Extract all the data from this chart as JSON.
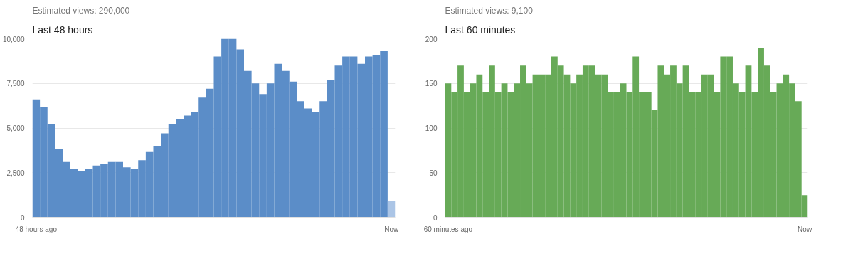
{
  "chart_data": [
    {
      "type": "bar",
      "title": "Last 48 hours",
      "subtitle": "Estimated views: 290,000",
      "categories": [
        "48 hours ago",
        null,
        null,
        null,
        null,
        null,
        null,
        null,
        null,
        null,
        null,
        null,
        null,
        null,
        null,
        null,
        null,
        null,
        null,
        null,
        null,
        null,
        null,
        null,
        null,
        null,
        null,
        null,
        null,
        null,
        null,
        null,
        null,
        null,
        null,
        null,
        null,
        null,
        null,
        null,
        null,
        null,
        null,
        null,
        null,
        null,
        null,
        "Now"
      ],
      "values": [
        6600,
        6200,
        5200,
        3800,
        3100,
        2700,
        2600,
        2700,
        2900,
        3000,
        3100,
        3100,
        2800,
        2700,
        3200,
        3700,
        4000,
        4700,
        5200,
        5500,
        5700,
        5900,
        6700,
        7200,
        9000,
        10000,
        10000,
        9400,
        8200,
        7500,
        6900,
        7500,
        8600,
        8200,
        7600,
        6500,
        6100,
        5900,
        6500,
        7700,
        8500,
        9000,
        9000,
        8600,
        9000,
        9100,
        9300,
        900
      ],
      "colors": [
        "#5b8dc8",
        "#5b8dc8",
        "#5b8dc8",
        "#5b8dc8",
        "#5b8dc8",
        "#5b8dc8",
        "#5b8dc8",
        "#5b8dc8",
        "#5b8dc8",
        "#5b8dc8",
        "#5b8dc8",
        "#5b8dc8",
        "#5b8dc8",
        "#5b8dc8",
        "#5b8dc8",
        "#5b8dc8",
        "#5b8dc8",
        "#5b8dc8",
        "#5b8dc8",
        "#5b8dc8",
        "#5b8dc8",
        "#5b8dc8",
        "#5b8dc8",
        "#5b8dc8",
        "#5b8dc8",
        "#5b8dc8",
        "#5b8dc8",
        "#5b8dc8",
        "#5b8dc8",
        "#5b8dc8",
        "#5b8dc8",
        "#5b8dc8",
        "#5b8dc8",
        "#5b8dc8",
        "#5b8dc8",
        "#5b8dc8",
        "#5b8dc8",
        "#5b8dc8",
        "#5b8dc8",
        "#5b8dc8",
        "#5b8dc8",
        "#5b8dc8",
        "#5b8dc8",
        "#5b8dc8",
        "#5b8dc8",
        "#5b8dc8",
        "#5b8dc8",
        "#abc5e6"
      ],
      "ylim": [
        0,
        10000
      ],
      "yticks": [
        0,
        {
          "value": 2500,
          "label": "2,500"
        },
        {
          "value": 5000,
          "label": "5,000"
        },
        {
          "value": 7500,
          "label": "7,500"
        },
        {
          "value": 10000,
          "label": "10,000"
        }
      ],
      "grid": "y"
    },
    {
      "type": "bar",
      "title": "Last 60 minutes",
      "subtitle": "Estimated views: 9,100",
      "categories": [
        "60 minutes ago",
        null,
        null,
        null,
        null,
        null,
        null,
        null,
        null,
        null,
        null,
        null,
        null,
        null,
        null,
        null,
        null,
        null,
        null,
        null,
        null,
        null,
        null,
        null,
        null,
        null,
        null,
        null,
        null,
        null,
        null,
        null,
        null,
        null,
        null,
        null,
        null,
        null,
        null,
        null,
        null,
        null,
        null,
        null,
        null,
        null,
        null,
        null,
        null,
        null,
        null,
        null,
        null,
        null,
        null,
        null,
        null,
        "Now"
      ],
      "values": [
        150,
        140,
        170,
        140,
        150,
        160,
        140,
        170,
        140,
        150,
        140,
        150,
        170,
        150,
        160,
        160,
        160,
        180,
        170,
        160,
        150,
        160,
        170,
        170,
        160,
        160,
        140,
        140,
        150,
        140,
        180,
        140,
        140,
        120,
        170,
        160,
        170,
        150,
        170,
        140,
        140,
        160,
        160,
        140,
        180,
        180,
        150,
        140,
        170,
        140,
        190,
        170,
        140,
        150,
        160,
        150,
        130,
        25
      ],
      "color": "#67aa57",
      "ylim": [
        0,
        200
      ],
      "yticks": [
        0,
        50,
        100,
        150,
        200
      ],
      "grid": "y"
    }
  ]
}
